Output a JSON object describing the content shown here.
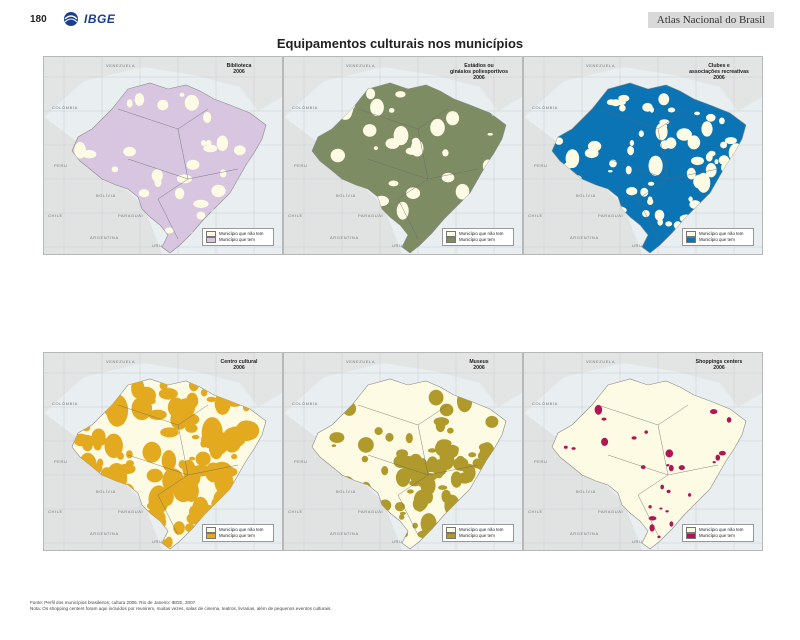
{
  "header": {
    "page_number": "180",
    "logo_text": "IBGE",
    "atlas_title": "Atlas Nacional do Brasil",
    "page_title": "Equipamentos culturais nos municípios"
  },
  "legend_labels": {
    "without": "Município que não tem",
    "with": "Município que tem"
  },
  "country_labels": [
    "VENEZUELA",
    "COLÔMBIA",
    "PERU",
    "BOLÍVIA",
    "PARAGUAI",
    "ARGENTINA",
    "URUGUAI",
    "CHILE"
  ],
  "maps": [
    {
      "title_lines": [
        "Biblioteca",
        "2006"
      ],
      "has_color": "#d8c6e0",
      "no_color": "#fdfbe3",
      "base": "has"
    },
    {
      "title_lines": [
        "Estádios ou",
        "ginásios poliesportivos",
        "2006"
      ],
      "has_color": "#7e8c63",
      "no_color": "#fdfbe3",
      "base": "has"
    },
    {
      "title_lines": [
        "Clubes e",
        "associações recreativas",
        "2006"
      ],
      "has_color": "#0a74b4",
      "no_color": "#fdfbe3",
      "base": "has"
    },
    {
      "title_lines": [
        "Centro cultural",
        "2006"
      ],
      "has_color": "#e3a91f",
      "no_color": "#fdfbe3",
      "base": "mixed"
    },
    {
      "title_lines": [
        "Museus",
        "2006"
      ],
      "has_color": "#b09a2c",
      "no_color": "#fdfbe3",
      "base": "no"
    },
    {
      "title_lines": [
        "Shoppings centers",
        "2006"
      ],
      "has_color": "#b01656",
      "no_color": "#fdfbe3",
      "base": "no"
    }
  ],
  "footer": {
    "source": "Fonte: Perfil dos municípios brasileiros: cultura 2006. Rio de Janeiro: IBGE, 2007.",
    "note": "Nota: Os shopping centers foram aqui incluídos por reunirem, muitas vezes, salas de cinema, teatros, livrarias, além de pequenos eventos culturais."
  }
}
